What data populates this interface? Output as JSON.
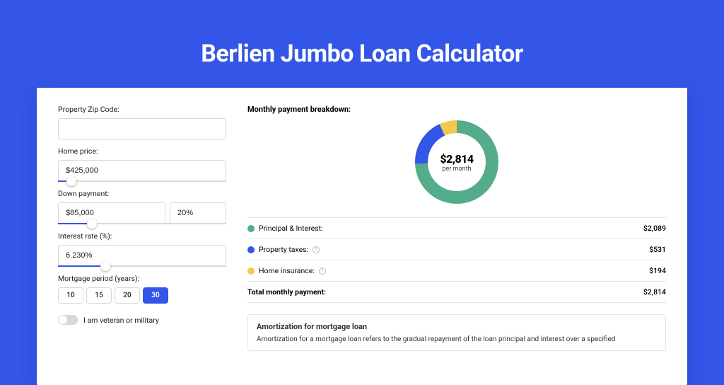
{
  "page": {
    "title": "Berlien Jumbo Loan Calculator",
    "background_color": "#3355e8",
    "card_bg": "#ffffff"
  },
  "form": {
    "zip": {
      "label": "Property Zip Code:",
      "value": ""
    },
    "home_price": {
      "label": "Home price:",
      "value": "$425,000",
      "slider_pct": 8
    },
    "down_payment": {
      "label": "Down payment:",
      "amount": "$85,000",
      "percent": "20%",
      "slider_pct": 20
    },
    "interest": {
      "label": "Interest rate (%):",
      "value": "6.230%",
      "slider_pct": 28
    },
    "period": {
      "label": "Mortgage period (years):",
      "options": [
        "10",
        "15",
        "20",
        "30"
      ],
      "selected_index": 3
    },
    "veteran": {
      "label": "I am veteran or military",
      "checked": false
    }
  },
  "breakdown": {
    "heading": "Monthly payment breakdown:",
    "center_value": "$2,814",
    "center_sub": "per month",
    "items": [
      {
        "label": "Principal & Interest:",
        "value": "$2,089",
        "color": "#54ac8a",
        "has_info": false
      },
      {
        "label": "Property taxes:",
        "value": "$531",
        "color": "#3355e8",
        "has_info": true
      },
      {
        "label": "Home insurance:",
        "value": "$194",
        "color": "#f2c94c",
        "has_info": true
      }
    ],
    "total": {
      "label": "Total monthly payment:",
      "value": "$2,814"
    },
    "donut": {
      "type": "pie",
      "radius": 50,
      "stroke_width": 18,
      "background_color": "#ffffff",
      "slices": [
        {
          "color": "#54ac8a",
          "fraction": 0.742
        },
        {
          "color": "#3355e8",
          "fraction": 0.189
        },
        {
          "color": "#f2c94c",
          "fraction": 0.069
        }
      ]
    }
  },
  "amort": {
    "heading": "Amortization for mortgage loan",
    "body": "Amortization for a mortgage loan refers to the gradual repayment of the loan principal and interest over a specified"
  },
  "style": {
    "accent": "#3355e8",
    "border": "#d8d8d8",
    "text": "#1b1b1b"
  }
}
